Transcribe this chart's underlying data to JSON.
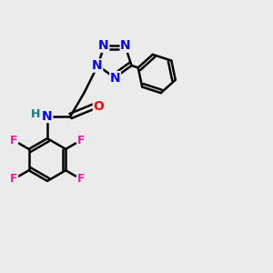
{
  "bg_color": "#ebebeb",
  "bond_color": "#000000",
  "N_color": "#0000ff",
  "O_color": "#ff0000",
  "F_color": "#e020a0",
  "H_color": "#008080",
  "lw": 1.8,
  "fs": 10,
  "fs_small": 9,
  "xlim": [
    0,
    10
  ],
  "ylim": [
    0,
    10
  ]
}
